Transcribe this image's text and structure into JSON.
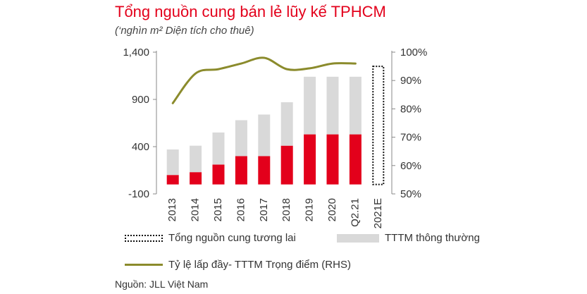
{
  "title": "Tổng nguồn cung bán lẻ lũy kế TPHCM",
  "subtitle": "(‘nghìn m² Diện tích cho thuê)",
  "source": "Nguồn: JLL Việt Nam",
  "legend": {
    "future": "Tổng nguồn cung tương lai",
    "regular": "TTTM thông thường",
    "occupancy": "Tỷ lệ lấp đầy- TTTM Trọng điểm  (RHS)"
  },
  "colors": {
    "prime": "#e3001b",
    "regular": "#d9d9d9",
    "line": "#8b8b2c",
    "title": "#e3001b"
  },
  "chart_data": {
    "type": "bar",
    "categories": [
      "2013",
      "2014",
      "2015",
      "2016",
      "2017",
      "2018",
      "2019",
      "2020",
      "Q2.21",
      "2021E"
    ],
    "series": [
      {
        "values": [
          100,
          130,
          210,
          300,
          300,
          410,
          530,
          530,
          530,
          null
        ]
      },
      {
        "values": [
          270,
          280,
          340,
          380,
          440,
          460,
          610,
          610,
          610,
          null
        ]
      },
      {
        "name": "Tổng nguồn cung tương lai",
        "values": [
          null,
          null,
          null,
          null,
          null,
          null,
          null,
          null,
          null,
          1250
        ]
      },
      {
        "name": "Tỷ lệ lấp đầy- TTTM Trọng điểm  (RHS)",
        "axis": "right",
        "type": "line",
        "values": [
          82,
          92.5,
          94,
          96,
          98,
          94,
          94.3,
          96,
          96,
          null
        ]
      }
    ],
    "left_axis": {
      "ticks": [
        "1,400",
        "900",
        "400",
        "-100"
      ],
      "ylim": [
        -100,
        1400
      ]
    },
    "right_axis": {
      "ticks": [
        "100%",
        "90%",
        "80%",
        "70%",
        "60%",
        "50%"
      ],
      "ylim": [
        50,
        100
      ]
    },
    "grid": false,
    "legend_position": "bottom"
  }
}
